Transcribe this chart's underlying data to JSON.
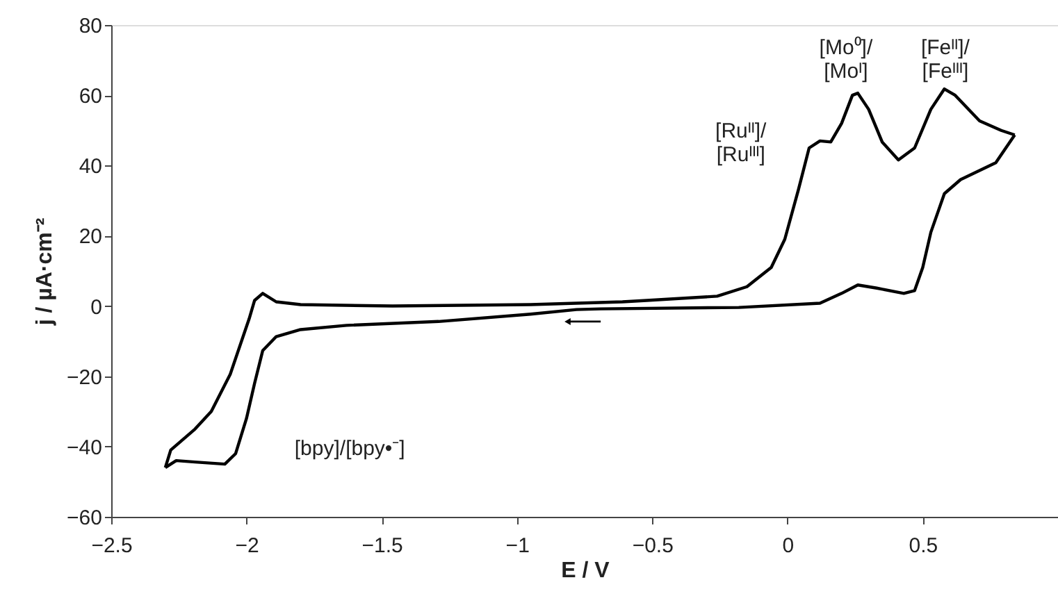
{
  "chart_data": {
    "type": "line",
    "xlabel": "E / V",
    "ylabel": "j / µA·cm⁻²",
    "xlim": [
      -2.5,
      1
    ],
    "xticks": [
      -2.5,
      -2,
      -1.5,
      -1,
      -0.5,
      0,
      0.5
    ],
    "ylim": [
      -60,
      80
    ],
    "yticks": [
      -60,
      -40,
      -20,
      0,
      20,
      40,
      60,
      80
    ],
    "grid": false,
    "marker": "none",
    "line_style": "solid",
    "series": [
      {
        "color": "#000000",
        "x": [
          0.84,
          0.77,
          0.64,
          0.58,
          0.53,
          0.5,
          0.47,
          0.43,
          0.33,
          0.26,
          0.2,
          0.12,
          -0.18,
          -0.69,
          -0.78,
          -0.95,
          -1.29,
          -1.63,
          -1.8,
          -1.89,
          -1.94,
          -1.97,
          -2.0,
          -2.04,
          -2.08,
          -2.19,
          -2.26,
          -2.3
        ],
        "values": [
          48.7,
          40.8,
          36,
          32,
          21,
          11,
          4.4,
          3.6,
          5.1,
          6,
          3.6,
          0.8,
          -0.4,
          -0.8,
          -1,
          -2.3,
          -4.4,
          -5.5,
          -6.7,
          -8.7,
          -12.7,
          -22,
          -32,
          -42,
          -45,
          -44.4,
          -44,
          -46
        ]
      },
      {
        "color": "#000000",
        "x": [
          -2.3,
          -2.28,
          -2.19,
          -2.13,
          -2.06,
          -1.99,
          -1.97,
          -1.94,
          -1.89,
          -1.8,
          -1.46,
          -0.95,
          -0.61,
          -0.52,
          -0.26,
          -0.15,
          -0.06,
          -0.01,
          0.04,
          0.08,
          0.12,
          0.16,
          0.2,
          0.24,
          0.26,
          0.3,
          0.35,
          0.41,
          0.47,
          0.53,
          0.58,
          0.62,
          0.71,
          0.79,
          0.84
        ],
        "values": [
          -46,
          -41,
          -35,
          -30,
          -19.4,
          -3.6,
          1.6,
          3.6,
          1.2,
          0.4,
          0,
          0.4,
          1.2,
          1.6,
          2.8,
          5.5,
          11,
          19,
          33,
          45,
          47,
          46.7,
          52,
          60,
          60.6,
          56,
          46.7,
          41.6,
          45,
          56,
          61.8,
          60,
          52.7,
          50,
          48.7
        ]
      }
    ],
    "annotations": [
      "[Ruᴵᴵ]/\n[Ruᴵᴵᴵ]",
      "[Mo⁰]/\n[Moᴵ]",
      "[Feᴵᴵ]/\n[Feᴵᴵᴵ]",
      "[bpy]/[bpy•⁻]"
    ]
  }
}
